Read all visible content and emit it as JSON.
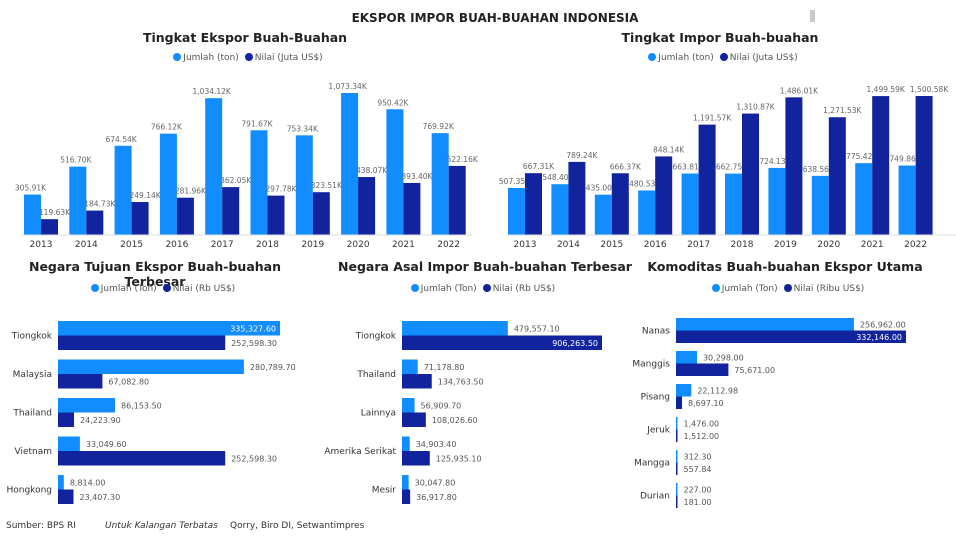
{
  "title": "EKSPOR IMPOR BUAH-BUAHAN INDONESIA",
  "colors": {
    "jumlah": "#118DFF",
    "nilai": "#12239E"
  },
  "footer": {
    "source": "Sumber: BPS RI",
    "note": "Untuk Kalangan Terbatas",
    "credit": "Qorry, Biro DI, Setwantimpres"
  },
  "chart_data": [
    {
      "type": "bar",
      "title": "Tingkat Ekspor Buah-Buahan",
      "categories": [
        "2013",
        "2014",
        "2015",
        "2016",
        "2017",
        "2018",
        "2019",
        "2020",
        "2021",
        "2022"
      ],
      "series": [
        {
          "name": "Jumlah (ton)",
          "values": [
            305.91,
            516.7,
            674.54,
            766.12,
            1034.12,
            791.67,
            753.34,
            1073.34,
            950.42,
            769.92
          ],
          "labels": [
            "305.91K",
            "516.70K",
            "674.54K",
            "766.12K",
            "1,034.12K",
            "791.67K",
            "753.34K",
            "1,073.34K",
            "950.42K",
            "769.92K"
          ]
        },
        {
          "name": "Nilai (Juta US$)",
          "values": [
            119.63,
            184.73,
            249.14,
            281.96,
            362.05,
            297.78,
            323.51,
            438.07,
            393.4,
            522.16
          ],
          "labels": [
            "119.63K",
            "184.73K",
            "249.14K",
            "281.96K",
            "362.05K",
            "297.78K",
            "323.51K",
            "438.07K",
            "393.40K",
            "522.16K"
          ]
        }
      ],
      "legend": "top"
    },
    {
      "type": "bar",
      "title": "Tingkat Impor Buah-buahan",
      "categories": [
        "2013",
        "2014",
        "2015",
        "2016",
        "2017",
        "2018",
        "2019",
        "2020",
        "2021",
        "2022"
      ],
      "series": [
        {
          "name": "Jumlah (ton)",
          "values": [
            507.35,
            548.4,
            435.0,
            480.53,
            663.81,
            662.75,
            724.13,
            638.56,
            775.42,
            749.86
          ],
          "labels": [
            "507.35K",
            "548.40K",
            "435.00K",
            "480.53K",
            "663.81K",
            "662.75K",
            "724.13K",
            "638.56K",
            "775.42K",
            "749.86K"
          ]
        },
        {
          "name": "Nilai (Juta US$)",
          "values": [
            667.31,
            789.24,
            666.37,
            848.14,
            1191.57,
            1310.87,
            1486.01,
            1271.53,
            1499.59,
            1500.58
          ],
          "labels": [
            "667.31K",
            "789.24K",
            "666.37K",
            "848.14K",
            "1,191.57K",
            "1,310.87K",
            "1,486.01K",
            "1,271.53K",
            "1,499.59K",
            "1,500.58K"
          ]
        }
      ],
      "legend": "top"
    },
    {
      "type": "bar",
      "orientation": "horizontal",
      "title": "Negara Tujuan Ekspor Buah-buahan Terbesar",
      "categories": [
        "Tiongkok",
        "Malaysia",
        "Thailand",
        "Vietnam",
        "Hongkong"
      ],
      "series": [
        {
          "name": "Jumlah (Ton)",
          "values": [
            335327.6,
            280789.7,
            86153.5,
            33049.6,
            8814.0
          ],
          "labels": [
            "335,327.60",
            "280,789.70",
            "86,153.50",
            "33,049.60",
            "8,814.00"
          ]
        },
        {
          "name": "Nilai (Rb US$)",
          "values": [
            252598.3,
            67082.8,
            24223.9,
            252598.3,
            23407.3
          ],
          "labels": [
            "252,598.30",
            "67,082.80",
            "24,223.90",
            "252,598.30",
            "23,407.30"
          ]
        }
      ],
      "legend": "top"
    },
    {
      "type": "bar",
      "orientation": "horizontal",
      "title": "Negara Asal Impor Buah-buahan Terbesar",
      "categories": [
        "Tiongkok",
        "Thailand",
        "Lainnya",
        "Amerika Serikat",
        "Mesir"
      ],
      "series": [
        {
          "name": "Jumlah (Ton)",
          "values": [
            479557.1,
            71178.8,
            56909.7,
            34903.4,
            30047.8
          ],
          "labels": [
            "479,557.10",
            "71,178.80",
            "56,909.70",
            "34,903.40",
            "30,047.80"
          ]
        },
        {
          "name": "Nilai (Rb US$)",
          "values": [
            906263.5,
            134763.5,
            108026.6,
            125935.1,
            36917.8
          ],
          "labels": [
            "906,263.50",
            "134,763.50",
            "108,026.60",
            "125,935.10",
            "36,917.80"
          ]
        }
      ],
      "legend": "top"
    },
    {
      "type": "bar",
      "orientation": "horizontal",
      "title": "Komoditas Buah-buahan Ekspor Utama",
      "categories": [
        "Nanas",
        "Manggis",
        "Pisang",
        "Jeruk",
        "Mangga",
        "Durian"
      ],
      "series": [
        {
          "name": "Jumlah (Ton)",
          "values": [
            256962.0,
            30298.0,
            22112.98,
            1476.0,
            312.3,
            227.0
          ],
          "labels": [
            "256,962.00",
            "30,298.00",
            "22,112.98",
            "1,476.00",
            "312.30",
            "227.00"
          ]
        },
        {
          "name": "Nilai (Ribu US$)",
          "values": [
            332146.0,
            75671.0,
            8697.1,
            1512.0,
            557.84,
            181.0
          ],
          "labels": [
            "332,146.00",
            "75,671.00",
            "8,697.10",
            "1,512.00",
            "557.84",
            "181.00"
          ]
        }
      ],
      "legend": "top"
    }
  ]
}
